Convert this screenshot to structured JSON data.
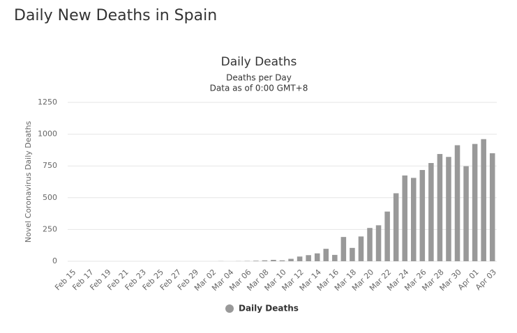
{
  "header": {
    "title": "Daily New Deaths in Spain"
  },
  "chart_data": {
    "type": "bar",
    "title": "Daily Deaths",
    "subtitle": [
      "Deaths per Day",
      "Data as of 0:00 GMT+8"
    ],
    "y_label": "Novel Coronavirus Daily Deaths",
    "categories": [
      "Feb 15",
      null,
      "Feb 17",
      null,
      "Feb 19",
      null,
      "Feb 21",
      null,
      "Feb 23",
      null,
      "Feb 25",
      null,
      "Feb 27",
      null,
      "Feb 29",
      null,
      "Mar 02",
      null,
      "Mar 04",
      null,
      "Mar 06",
      null,
      "Mar 08",
      null,
      "Mar 10",
      null,
      "Mar 12",
      null,
      "Mar 14",
      null,
      "Mar 16",
      null,
      "Mar 18",
      null,
      "Mar 20",
      null,
      "Mar 22",
      null,
      "Mar 24",
      null,
      "Mar 26",
      null,
      "Mar 28",
      null,
      "Mar 30",
      null,
      "Apr 01",
      null,
      "Apr 03"
    ],
    "series": [
      {
        "name": "Daily Deaths",
        "color": "#999999",
        "values": [
          0,
          0,
          0,
          0,
          0,
          0,
          0,
          0,
          0,
          0,
          0,
          0,
          0,
          0,
          0,
          0,
          0,
          1,
          0,
          1,
          2,
          4,
          7,
          11,
          7,
          19,
          37,
          48,
          62,
          98,
          50,
          191,
          105,
          195,
          262,
          283,
          391,
          535,
          675,
          656,
          718,
          773,
          844,
          821,
          913,
          748,
          923,
          961,
          850
        ]
      }
    ],
    "ylim": [
      0,
      1250
    ],
    "yticks": [
      0,
      250,
      500,
      750,
      1000,
      1250
    ],
    "grid": true
  }
}
